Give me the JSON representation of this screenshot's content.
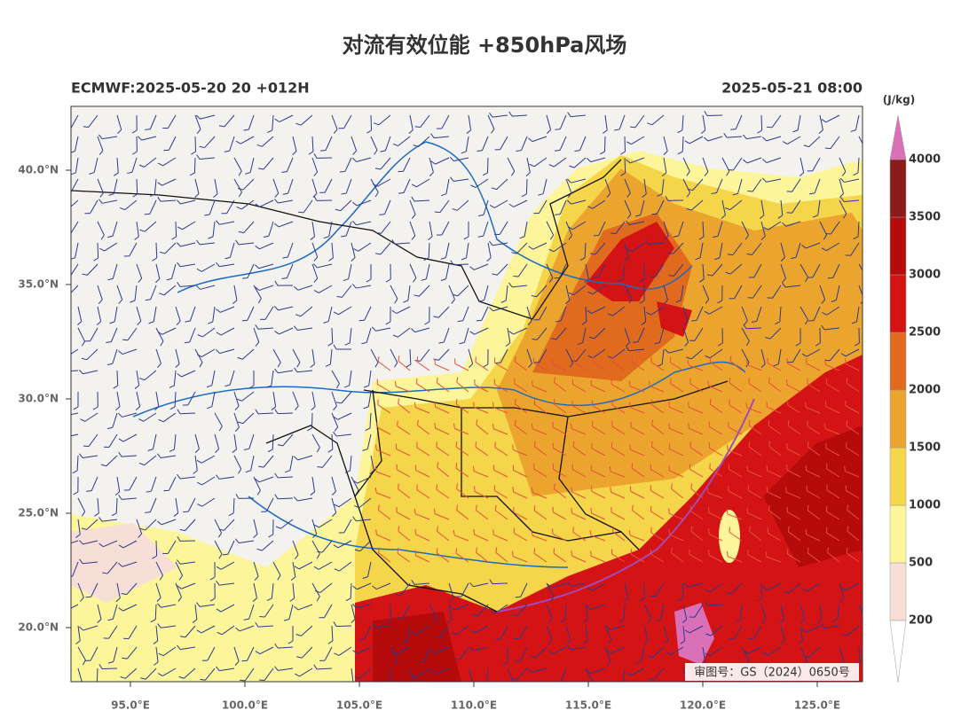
{
  "title": "对流有效位能 +850hPa风场",
  "left_label": "ECMWF:2025-05-20 20 +012H",
  "right_label": "2025-05-21 08:00",
  "lon_ticks": [
    {
      "value": 95,
      "label": "95.0°E"
    },
    {
      "value": 100,
      "label": "100.0°E"
    },
    {
      "value": 105,
      "label": "105.0°E"
    },
    {
      "value": 110,
      "label": "110.0°E"
    },
    {
      "value": 115,
      "label": "115.0°E"
    },
    {
      "value": 120,
      "label": "120.0°E"
    },
    {
      "value": 125,
      "label": "125.0°E"
    }
  ],
  "lat_ticks": [
    {
      "value": 40,
      "label": "40.0°N"
    },
    {
      "value": 35,
      "label": "35.0°N"
    },
    {
      "value": 30,
      "label": "30.0°N"
    },
    {
      "value": 25,
      "label": "25.0°N"
    },
    {
      "value": 20,
      "label": "20.0°N"
    }
  ],
  "colorbar": {
    "unit": "(J/kg)",
    "levels": [
      200,
      500,
      1000,
      1500,
      2000,
      2500,
      3000,
      3500,
      4000
    ],
    "colors": [
      "#f7ded6",
      "#fcf59a",
      "#f5d54a",
      "#eba52e",
      "#e06a1e",
      "#d41414",
      "#b50b0b",
      "#8b1a1a"
    ],
    "over_color": "#d970b8",
    "under_color": "#ffffff"
  },
  "watermark": "审图号：GS（2024）0650号"
}
